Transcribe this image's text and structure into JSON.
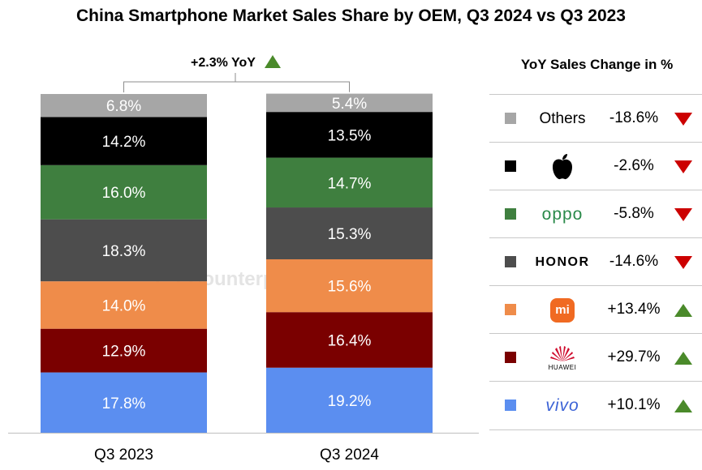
{
  "title": "China Smartphone Market Sales Share by OEM, Q3 2024 vs Q3 2023",
  "yoy_annotation": "+2.3% YoY",
  "legend_title": "YoY Sales Change in %",
  "watermark": "Counterpoint",
  "colors": {
    "Others": "#a6a6a6",
    "Apple": "#000000",
    "OPPO": "#3f7f3f",
    "HONOR": "#4d4d4d",
    "Xiaomi": "#ef8c4a",
    "Huawei": "#7a0000",
    "vivo": "#5b8ef0",
    "up": "#4a8a2a",
    "down": "#cc0000"
  },
  "chart_data": {
    "type": "bar",
    "stacked": true,
    "normalized_percent": true,
    "categories": [
      "Q3 2023",
      "Q3 2024"
    ],
    "series": [
      {
        "name": "vivo",
        "values": [
          17.8,
          19.2
        ],
        "labels": [
          "17.8%",
          "19.2%"
        ]
      },
      {
        "name": "Huawei",
        "values": [
          12.9,
          16.4
        ],
        "labels": [
          "12.9%",
          "16.4%"
        ]
      },
      {
        "name": "Xiaomi",
        "values": [
          14.0,
          15.6
        ],
        "labels": [
          "14.0%",
          "15.6%"
        ]
      },
      {
        "name": "HONOR",
        "values": [
          18.3,
          15.3
        ],
        "labels": [
          "18.3%",
          "15.3%"
        ]
      },
      {
        "name": "OPPO",
        "values": [
          16.0,
          14.7
        ],
        "labels": [
          "16.0%",
          "14.7%"
        ]
      },
      {
        "name": "Apple",
        "values": [
          14.2,
          13.5
        ],
        "labels": [
          "14.2%",
          "13.5%"
        ]
      },
      {
        "name": "Others",
        "values": [
          6.8,
          5.4
        ],
        "labels": [
          "6.8%",
          "5.4%"
        ]
      }
    ],
    "ylim": [
      0,
      100
    ],
    "legend_position": "right"
  },
  "legend": [
    {
      "key": "Others",
      "logo": "Others",
      "logo_type": "text",
      "change": "-18.6%",
      "direction": "down"
    },
    {
      "key": "Apple",
      "logo": "apple-logo",
      "logo_type": "apple",
      "change": "-2.6%",
      "direction": "down"
    },
    {
      "key": "OPPO",
      "logo": "oppo",
      "logo_type": "oppo",
      "change": "-5.8%",
      "direction": "down"
    },
    {
      "key": "HONOR",
      "logo": "HONOR",
      "logo_type": "honor",
      "change": "-14.6%",
      "direction": "down"
    },
    {
      "key": "Xiaomi",
      "logo": "mi",
      "logo_type": "mi",
      "change": "+13.4%",
      "direction": "up"
    },
    {
      "key": "Huawei",
      "logo": "HUAWEI",
      "logo_type": "huawei",
      "change": "+29.7%",
      "direction": "up"
    },
    {
      "key": "vivo",
      "logo": "vivo",
      "logo_type": "vivo",
      "change": "+10.1%",
      "direction": "up"
    }
  ]
}
